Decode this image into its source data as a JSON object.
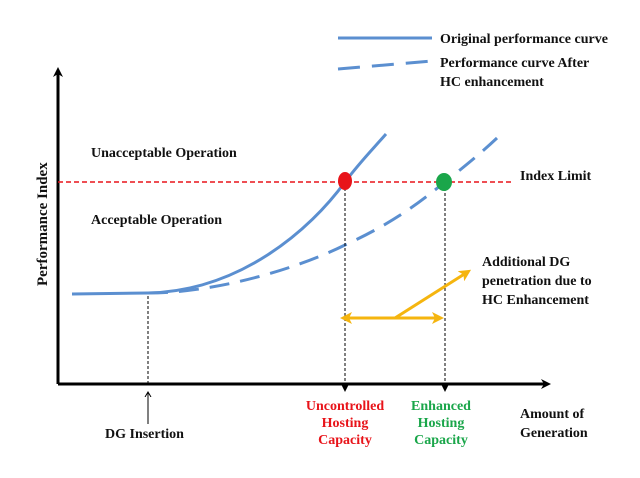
{
  "legend": {
    "original": "Original performance curve",
    "after_line1": "Performance curve After",
    "after_line2": "HC enhancement"
  },
  "axes": {
    "y_label": "Performance Index",
    "x_label_line1": "Amount of",
    "x_label_line2": "Generation"
  },
  "regions": {
    "unacceptable": "Unacceptable Operation",
    "acceptable": "Acceptable Operation"
  },
  "index_limit": "Index Limit",
  "dg_insertion": "DG Insertion",
  "uncontrolled": {
    "line1": "Uncontrolled",
    "line2": "Hosting",
    "line3": "Capacity"
  },
  "enhanced": {
    "line1": "Enhanced",
    "line2": "Hosting",
    "line3": "Capacity"
  },
  "additional": {
    "line1": "Additional DG",
    "line2": "penetration due to",
    "line3": "HC Enhancement"
  },
  "colors": {
    "curve": "#5b8fd0",
    "limit": "#e8141a",
    "red_marker": "#e8141a",
    "green_marker": "#1aa64a",
    "arrow": "#f5b50f",
    "axis": "#000000"
  }
}
